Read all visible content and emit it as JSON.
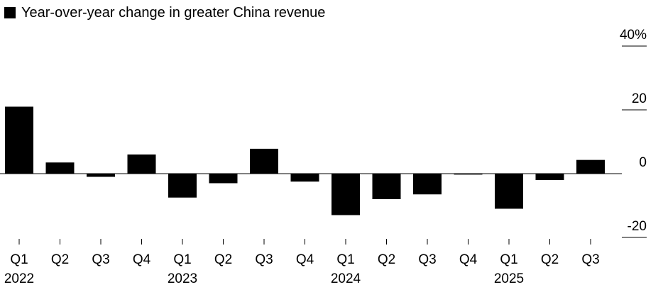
{
  "chart_data": {
    "type": "bar",
    "legend": {
      "label": "Year-over-year change in greater China revenue",
      "color": "#000000",
      "placement": "top-left"
    },
    "categories": [
      "Q1",
      "Q2",
      "Q3",
      "Q4",
      "Q1",
      "Q2",
      "Q3",
      "Q4",
      "Q1",
      "Q2",
      "Q3",
      "Q4",
      "Q1",
      "Q2",
      "Q3"
    ],
    "year_labels": [
      {
        "label": "2022",
        "start_index": 0
      },
      {
        "label": "2023",
        "start_index": 4
      },
      {
        "label": "2024",
        "start_index": 8
      },
      {
        "label": "2025",
        "start_index": 12
      }
    ],
    "values": [
      21.0,
      3.5,
      -1.0,
      6.0,
      -7.5,
      -3.0,
      7.8,
      -2.5,
      -13.0,
      -8.0,
      -6.5,
      -0.3,
      -11.0,
      -2.0,
      4.3
    ],
    "series": [
      {
        "values": [
          21.0,
          3.5,
          -1.0,
          6.0,
          -7.5,
          -3.0,
          7.8,
          -2.5,
          -13.0,
          -8.0,
          -6.5,
          -0.3,
          -11.0,
          -2.0,
          4.3
        ]
      }
    ],
    "ylim": [
      -20,
      40
    ],
    "y_ticks": [
      40,
      20,
      0,
      -20
    ],
    "y_tick_labels": [
      "40%",
      "20",
      "0",
      "-20"
    ],
    "y_axis_side": "right",
    "bar_color": "#000000",
    "zero_line_color": "#000000",
    "grid": false,
    "title": "",
    "xlabel": "",
    "ylabel": ""
  }
}
